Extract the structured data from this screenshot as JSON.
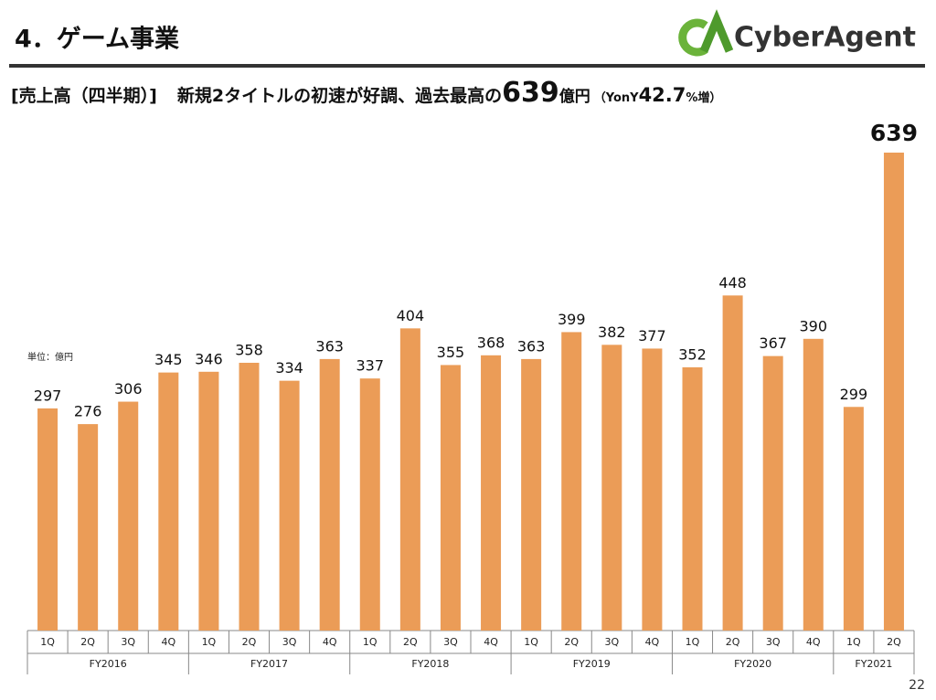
{
  "header": {
    "title": "4．ゲーム事業",
    "logo": "CyberAgent"
  },
  "subtitle": [
    "[売上高（四半期）]",
    "新規2タイトルの初速が好調、過去最高の",
    "639",
    "億円",
    "（YonY",
    "42.7",
    "%増）"
  ],
  "unit_label": "単位：億円",
  "page_number": "22",
  "chart_data": {
    "type": "bar",
    "color": "#eb9c57",
    "groups": [
      {
        "label": "FY2016",
        "categories": [
          "1Q",
          "2Q",
          "3Q",
          "4Q"
        ],
        "values": [
          297,
          276,
          306,
          345
        ]
      },
      {
        "label": "FY2017",
        "categories": [
          "1Q",
          "2Q",
          "3Q",
          "4Q"
        ],
        "values": [
          346,
          358,
          334,
          363
        ]
      },
      {
        "label": "FY2018",
        "categories": [
          "1Q",
          "2Q",
          "3Q",
          "4Q"
        ],
        "values": [
          337,
          404,
          355,
          368
        ]
      },
      {
        "label": "FY2019",
        "categories": [
          "1Q",
          "2Q",
          "3Q",
          "4Q"
        ],
        "values": [
          363,
          399,
          382,
          377
        ]
      },
      {
        "label": "FY2020",
        "categories": [
          "1Q",
          "2Q",
          "3Q",
          "4Q"
        ],
        "values": [
          352,
          448,
          367,
          390
        ]
      },
      {
        "label": "FY2021",
        "categories": [
          "1Q",
          "2Q"
        ],
        "values": [
          299,
          639
        ]
      }
    ]
  }
}
